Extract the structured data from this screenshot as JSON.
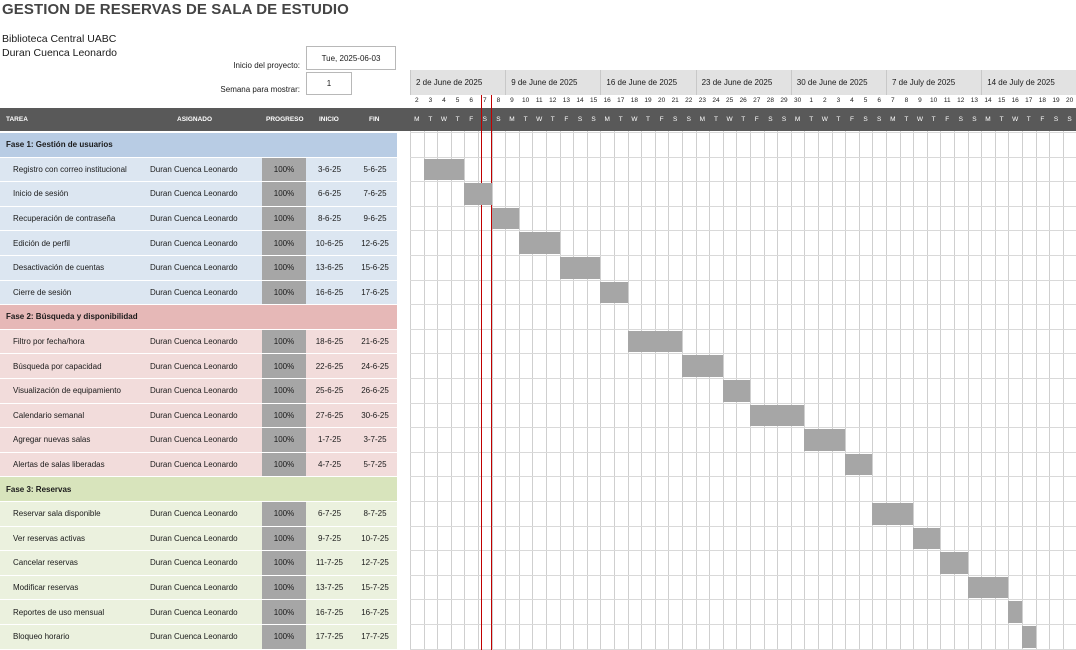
{
  "title": "GESTION DE RESERVAS DE SALA DE ESTUDIO",
  "org": "Biblioteca Central UABC",
  "owner": "Duran Cuenca Leonardo",
  "project_start_label": "Inicio del proyecto:",
  "project_start_value": "Tue, 2025-06-03",
  "week_label": "Semana para mostrar:",
  "week_value": "1",
  "columns": {
    "task": "TAREA",
    "assigned": "ASIGNADO",
    "progress": "PROGRESO",
    "start": "INICIO",
    "end": "FIN"
  },
  "weeks": [
    "2 de June de 2025",
    "9 de June de 2025",
    "16 de June de 2025",
    "23 de June de 2025",
    "30 de June de 2025",
    "7 de July de 2025",
    "14 de July de 2025"
  ],
  "day_numbers": [
    "2",
    "3",
    "4",
    "5",
    "6",
    "7",
    "8",
    "9",
    "10",
    "11",
    "12",
    "13",
    "14",
    "15",
    "16",
    "17",
    "18",
    "19",
    "20",
    "21",
    "22",
    "23",
    "24",
    "25",
    "26",
    "27",
    "28",
    "29",
    "30",
    "1",
    "2",
    "3",
    "4",
    "5",
    "6",
    "7",
    "8",
    "9",
    "10",
    "11",
    "12",
    "13",
    "14",
    "15",
    "16",
    "17",
    "18",
    "19",
    "20"
  ],
  "day_letters": [
    "M",
    "T",
    "W",
    "T",
    "F",
    "S",
    "S"
  ],
  "colors": {
    "phase1": "#b8cce4",
    "phase1_row": "#dce6f1",
    "phase2": "#e6b8b7",
    "phase2_row": "#f2dcdb",
    "phase3": "#d8e4bc",
    "phase3_row": "#ebf1de",
    "bar": "#a6a6a6",
    "today_line": "#c00000",
    "header_bar": "#595959"
  },
  "phases": [
    {
      "name": "Fase 1: Gestión de usuarios",
      "color": "#b8cce4",
      "row_color": "#dce6f1",
      "tasks": [
        {
          "task": "Registro con correo institucional",
          "assigned": "Duran Cuenca Leonardo",
          "progress": "100%",
          "start": "3-6-25",
          "end": "5-6-25",
          "start_day": 1,
          "end_day": 3
        },
        {
          "task": "Inicio de sesión",
          "assigned": "Duran Cuenca Leonardo",
          "progress": "100%",
          "start": "6-6-25",
          "end": "7-6-25",
          "start_day": 4,
          "end_day": 5
        },
        {
          "task": "Recuperación de contraseña",
          "assigned": "Duran Cuenca Leonardo",
          "progress": "100%",
          "start": "8-6-25",
          "end": "9-6-25",
          "start_day": 6,
          "end_day": 7
        },
        {
          "task": "Edición de perfil",
          "assigned": "Duran Cuenca Leonardo",
          "progress": "100%",
          "start": "10-6-25",
          "end": "12-6-25",
          "start_day": 8,
          "end_day": 10
        },
        {
          "task": "Desactivación de cuentas",
          "assigned": "Duran Cuenca Leonardo",
          "progress": "100%",
          "start": "13-6-25",
          "end": "15-6-25",
          "start_day": 11,
          "end_day": 13
        },
        {
          "task": "Cierre de sesión",
          "assigned": "Duran Cuenca Leonardo",
          "progress": "100%",
          "start": "16-6-25",
          "end": "17-6-25",
          "start_day": 14,
          "end_day": 15
        }
      ]
    },
    {
      "name": "Fase 2: Búsqueda y disponibilidad",
      "color": "#e6b8b7",
      "row_color": "#f2dcdb",
      "tasks": [
        {
          "task": "Filtro por fecha/hora",
          "assigned": "Duran Cuenca Leonardo",
          "progress": "100%",
          "start": "18-6-25",
          "end": "21-6-25",
          "start_day": 16,
          "end_day": 19
        },
        {
          "task": "Búsqueda por capacidad",
          "assigned": "Duran Cuenca Leonardo",
          "progress": "100%",
          "start": "22-6-25",
          "end": "24-6-25",
          "start_day": 20,
          "end_day": 22
        },
        {
          "task": "Visualización de equipamiento",
          "assigned": "Duran Cuenca Leonardo",
          "progress": "100%",
          "start": "25-6-25",
          "end": "26-6-25",
          "start_day": 23,
          "end_day": 24
        },
        {
          "task": "Calendario semanal",
          "assigned": "Duran Cuenca Leonardo",
          "progress": "100%",
          "start": "27-6-25",
          "end": "30-6-25",
          "start_day": 25,
          "end_day": 28
        },
        {
          "task": "Agregar nuevas salas",
          "assigned": "Duran Cuenca Leonardo",
          "progress": "100%",
          "start": "1-7-25",
          "end": "3-7-25",
          "start_day": 29,
          "end_day": 31
        },
        {
          "task": "Alertas de salas liberadas",
          "assigned": "Duran Cuenca Leonardo",
          "progress": "100%",
          "start": "4-7-25",
          "end": "5-7-25",
          "start_day": 32,
          "end_day": 33
        }
      ]
    },
    {
      "name": "Fase 3: Reservas",
      "color": "#d8e4bc",
      "row_color": "#ebf1de",
      "tasks": [
        {
          "task": "Reservar sala disponible",
          "assigned": "Duran Cuenca Leonardo",
          "progress": "100%",
          "start": "6-7-25",
          "end": "8-7-25",
          "start_day": 34,
          "end_day": 36
        },
        {
          "task": "Ver reservas activas",
          "assigned": "Duran Cuenca Leonardo",
          "progress": "100%",
          "start": "9-7-25",
          "end": "10-7-25",
          "start_day": 37,
          "end_day": 38
        },
        {
          "task": "Cancelar reservas",
          "assigned": "Duran Cuenca Leonardo",
          "progress": "100%",
          "start": "11-7-25",
          "end": "12-7-25",
          "start_day": 39,
          "end_day": 40
        },
        {
          "task": "Modificar reservas",
          "assigned": "Duran Cuenca Leonardo",
          "progress": "100%",
          "start": "13-7-25",
          "end": "15-7-25",
          "start_day": 41,
          "end_day": 43
        },
        {
          "task": "Reportes de uso mensual",
          "assigned": "Duran Cuenca Leonardo",
          "progress": "100%",
          "start": "16-7-25",
          "end": "16-7-25",
          "start_day": 44,
          "end_day": 44
        },
        {
          "task": "Bloqueo horario",
          "assigned": "Duran Cuenca Leonardo",
          "progress": "100%",
          "start": "17-7-25",
          "end": "17-7-25",
          "start_day": 45,
          "end_day": 45
        }
      ]
    }
  ],
  "today_day_index": 5
}
